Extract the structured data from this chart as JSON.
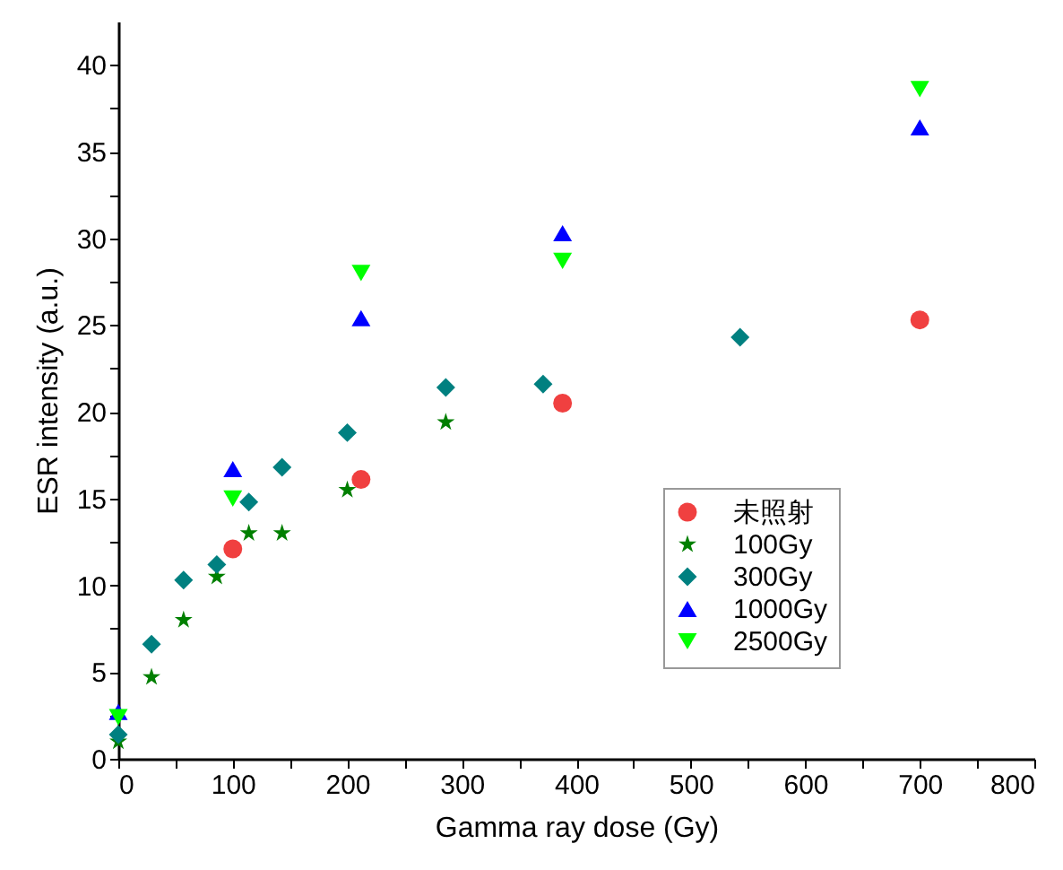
{
  "chart_data": {
    "type": "scatter",
    "xlabel": "Gamma ray dose (Gy)",
    "ylabel": "ESR intensity (a.u.)",
    "xlim": [
      0,
      800
    ],
    "ylim": [
      0,
      42.5
    ],
    "xticks": [
      0,
      {
        "value": 50,
        "label": null
      },
      100,
      {
        "value": 150,
        "label": null
      },
      200,
      {
        "value": 250,
        "label": null
      },
      300,
      {
        "value": 350,
        "label": null
      },
      400,
      {
        "value": 450,
        "label": null
      },
      500,
      {
        "value": 550,
        "label": null
      },
      600,
      {
        "value": 650,
        "label": null
      },
      700,
      {
        "value": 750,
        "label": null
      },
      800
    ],
    "yticks": [
      0,
      {
        "value": 2.5,
        "label": null
      },
      5,
      {
        "value": 7.5,
        "label": null
      },
      10,
      {
        "value": 12.5,
        "label": null
      },
      15,
      {
        "value": 17.5,
        "label": null
      },
      20,
      {
        "value": 22.5,
        "label": null
      },
      25,
      {
        "value": 27.5,
        "label": null
      },
      30,
      {
        "value": 32.5,
        "label": null
      },
      35,
      {
        "value": 37.5,
        "label": null
      },
      40
    ],
    "grid": false,
    "legend": "bottom right",
    "series": [
      {
        "name": "未照射",
        "color": "#f04040",
        "marker": "circle",
        "x": [
          100,
          212,
          388,
          700
        ],
        "values": [
          12.1,
          16.1,
          20.5,
          25.3
        ]
      },
      {
        "name": "100Gy",
        "color": "#007f00",
        "marker": "star",
        "x": [
          0,
          29,
          57,
          86,
          114,
          143,
          200,
          286
        ],
        "values": [
          1.0,
          4.7,
          8.0,
          10.5,
          13.0,
          13.0,
          15.5,
          19.4
        ]
      },
      {
        "name": "300Gy",
        "color": "#008080",
        "marker": "diamond",
        "x": [
          0,
          29,
          57,
          86,
          114,
          143,
          200,
          286,
          371,
          543
        ],
        "values": [
          1.4,
          6.6,
          10.3,
          11.2,
          14.8,
          16.8,
          18.8,
          21.4,
          21.6,
          24.3
        ]
      },
      {
        "name": "1000Gy",
        "color": "#0000ff",
        "marker": "triangle",
        "x": [
          0,
          100,
          212,
          388,
          700
        ],
        "values": [
          2.7,
          16.7,
          25.4,
          30.3,
          36.4
        ]
      },
      {
        "name": "2500Gy",
        "color": "#00ff00",
        "marker": "triangle-down",
        "x": [
          0,
          100,
          212,
          388,
          700
        ],
        "values": [
          2.4,
          15.0,
          28.0,
          28.7,
          38.6
        ]
      }
    ]
  }
}
